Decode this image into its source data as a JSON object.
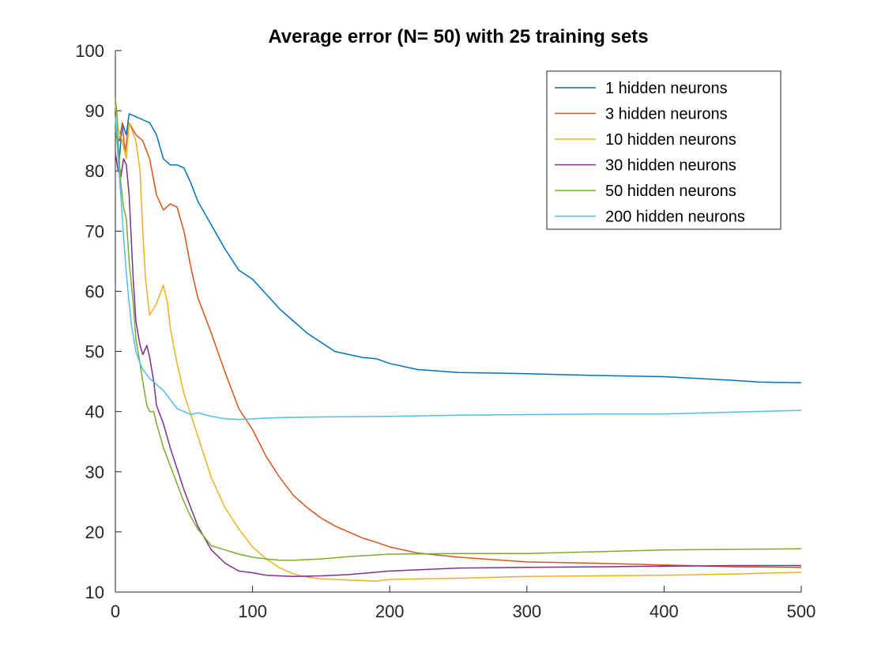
{
  "chart_data": {
    "type": "line",
    "title": "Average error (N= 50) with 25 training sets",
    "xlabel": "",
    "ylabel": "",
    "xlim": [
      0,
      500
    ],
    "ylim": [
      10,
      100
    ],
    "xticks": [
      0,
      100,
      200,
      300,
      400,
      500
    ],
    "yticks": [
      10,
      20,
      30,
      40,
      50,
      60,
      70,
      80,
      90,
      100
    ],
    "grid": false,
    "legend_position": "top-right",
    "series": [
      {
        "name": "1 hidden neurons",
        "color": "#0072BD",
        "x": [
          0,
          3,
          5,
          8,
          10,
          15,
          20,
          25,
          30,
          35,
          40,
          45,
          50,
          55,
          60,
          70,
          80,
          90,
          100,
          110,
          120,
          130,
          140,
          150,
          160,
          170,
          180,
          190,
          200,
          210,
          220,
          250,
          300,
          350,
          400,
          450,
          470,
          500
        ],
        "y": [
          87,
          82,
          88,
          86,
          89.5,
          89,
          88.5,
          88,
          86,
          82,
          81,
          81,
          80.5,
          78,
          75,
          71,
          67,
          63.5,
          62,
          59.5,
          57,
          55,
          53,
          51.5,
          50,
          49.5,
          49,
          48.8,
          48,
          47.5,
          47,
          46.5,
          46.3,
          46,
          45.8,
          45.2,
          44.9,
          44.8
        ]
      },
      {
        "name": "3 hidden neurons",
        "color": "#D95319",
        "x": [
          0,
          3,
          5,
          7,
          10,
          15,
          20,
          25,
          30,
          35,
          40,
          45,
          50,
          55,
          60,
          70,
          80,
          90,
          100,
          110,
          120,
          130,
          140,
          150,
          160,
          170,
          180,
          190,
          200,
          220,
          250,
          300,
          350,
          400,
          450,
          500
        ],
        "y": [
          86,
          85,
          88,
          83,
          88,
          86,
          85,
          82,
          76,
          73.5,
          74.5,
          74,
          70,
          64,
          59,
          53,
          46.5,
          40.5,
          37,
          32.5,
          29,
          26,
          24,
          22.3,
          21,
          20,
          19,
          18.3,
          17.5,
          16.5,
          15.8,
          15,
          14.8,
          14.5,
          14.2,
          14.1
        ]
      },
      {
        "name": "10 hidden neurons",
        "color": "#EDB120",
        "x": [
          0,
          2,
          5,
          8,
          10,
          15,
          18,
          20,
          22,
          25,
          30,
          35,
          38,
          40,
          45,
          50,
          60,
          70,
          80,
          90,
          100,
          110,
          120,
          130,
          140,
          150,
          170,
          190,
          200,
          250,
          300,
          400,
          450,
          500
        ],
        "y": [
          91,
          87,
          85,
          82,
          88,
          85,
          80,
          70,
          62,
          56,
          58,
          61,
          58,
          54,
          48,
          43,
          36,
          29,
          24,
          20.5,
          17.5,
          15.5,
          14,
          13,
          12.5,
          12.2,
          12,
          11.8,
          12.1,
          12.3,
          12.6,
          12.8,
          13,
          13.3
        ]
      },
      {
        "name": "30 hidden neurons",
        "color": "#7E2F8E",
        "x": [
          0,
          2,
          4,
          6,
          8,
          10,
          13,
          15,
          18,
          20,
          23,
          25,
          28,
          30,
          35,
          40,
          45,
          50,
          55,
          60,
          70,
          80,
          90,
          100,
          110,
          120,
          130,
          150,
          170,
          200,
          250,
          300,
          400,
          450,
          500
        ],
        "y": [
          83,
          80,
          79,
          82,
          81,
          76,
          62,
          55,
          51,
          49.5,
          51,
          49,
          45,
          41,
          38,
          34,
          30.5,
          27,
          24,
          21,
          17,
          14.8,
          13.5,
          13.2,
          12.8,
          12.7,
          12.6,
          12.7,
          12.9,
          13.5,
          14,
          14.1,
          14.3,
          14.4,
          14.4
        ]
      },
      {
        "name": "50 hidden neurons",
        "color": "#77AC30",
        "x": [
          0,
          1,
          2,
          4,
          6,
          8,
          10,
          13,
          15,
          18,
          20,
          23,
          25,
          28,
          30,
          35,
          40,
          45,
          50,
          55,
          60,
          70,
          80,
          90,
          100,
          110,
          120,
          130,
          150,
          170,
          200,
          250,
          300,
          400,
          450,
          500
        ],
        "y": [
          92,
          90,
          85,
          78,
          74,
          72,
          65,
          58,
          52,
          48,
          45,
          41,
          40,
          40,
          38,
          34,
          31,
          28,
          25,
          22.5,
          20.5,
          17.7,
          17,
          16.3,
          15.8,
          15.5,
          15.3,
          15.3,
          15.5,
          15.9,
          16.3,
          16.4,
          16.4,
          17,
          17.1,
          17.2
        ]
      },
      {
        "name": "200 hidden neurons",
        "color": "#4DBEEE",
        "x": [
          0,
          2,
          4,
          6,
          8,
          10,
          12,
          15,
          18,
          20,
          25,
          30,
          35,
          40,
          45,
          50,
          55,
          60,
          70,
          80,
          90,
          100,
          120,
          150,
          200,
          250,
          300,
          350,
          400,
          450,
          500
        ],
        "y": [
          89,
          82,
          76,
          69,
          63,
          58,
          54,
          50,
          48,
          47,
          45.5,
          44.5,
          43.5,
          42,
          40.5,
          40,
          39.5,
          39.8,
          39.2,
          38.8,
          38.7,
          38.8,
          39,
          39.1,
          39.2,
          39.4,
          39.5,
          39.6,
          39.6,
          39.9,
          40.2
        ]
      }
    ]
  }
}
